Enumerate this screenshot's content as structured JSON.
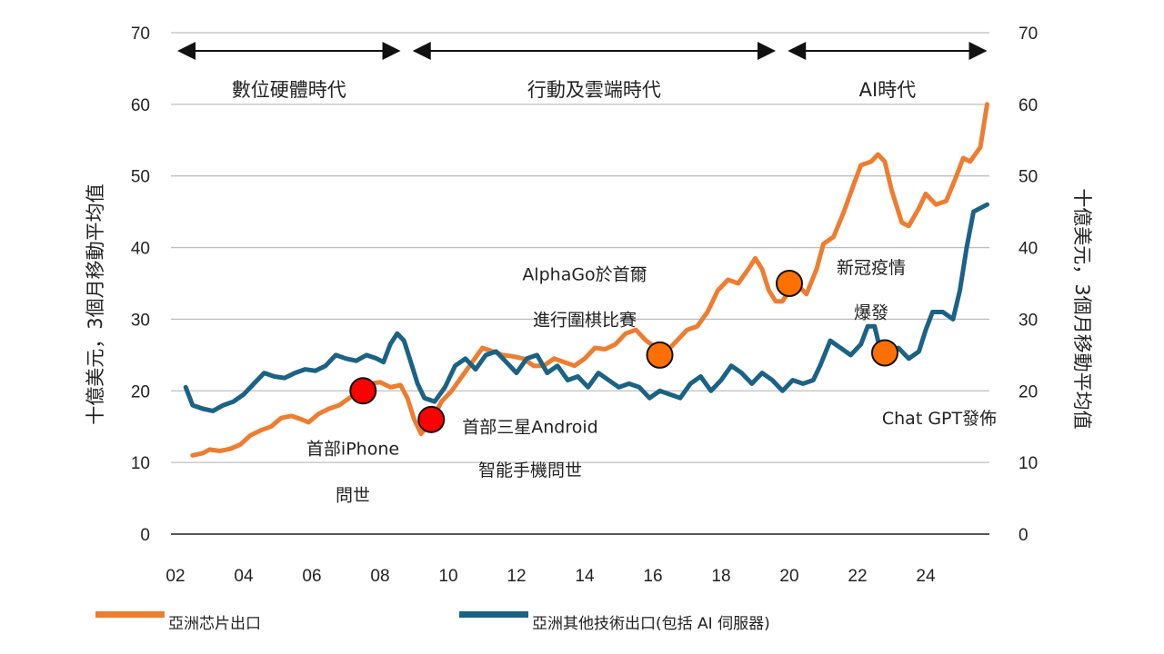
{
  "chart_data": {
    "type": "line",
    "title": "",
    "ylabel": "十億美元，3個月移動平均值",
    "ylabel_right": "十億美元，3個月移動平均值",
    "xlabel": "",
    "ylim": [
      0,
      70
    ],
    "yticks": [
      0,
      10,
      20,
      30,
      40,
      50,
      60,
      70
    ],
    "xticks": [
      "02",
      "04",
      "06",
      "08",
      "10",
      "12",
      "14",
      "16",
      "18",
      "20",
      "22",
      "24"
    ],
    "xlim": [
      2002,
      2026
    ],
    "grid": true,
    "legend_position": "bottom",
    "eras": [
      {
        "label": "數位硬體時代",
        "start": 2002,
        "end": 2008.6
      },
      {
        "label": "行動及雲端時代",
        "start": 2008.9,
        "end": 2019.6
      },
      {
        "label": "AI時代",
        "start": 2019.9,
        "end": 2025.8
      }
    ],
    "series": [
      {
        "name": "亞洲芯片出口",
        "color": "#ED7D31",
        "points": [
          [
            2002.5,
            11
          ],
          [
            2002.8,
            11.3
          ],
          [
            2003.0,
            11.8
          ],
          [
            2003.3,
            11.6
          ],
          [
            2003.6,
            11.9
          ],
          [
            2003.9,
            12.5
          ],
          [
            2004.2,
            13.8
          ],
          [
            2004.5,
            14.5
          ],
          [
            2004.8,
            15.0
          ],
          [
            2005.1,
            16.2
          ],
          [
            2005.4,
            16.5
          ],
          [
            2005.7,
            16.0
          ],
          [
            2005.9,
            15.6
          ],
          [
            2006.2,
            16.8
          ],
          [
            2006.5,
            17.5
          ],
          [
            2006.8,
            18.0
          ],
          [
            2007.1,
            19.0
          ],
          [
            2007.4,
            20.0
          ],
          [
            2007.7,
            21.0
          ],
          [
            2008.0,
            21.2
          ],
          [
            2008.3,
            20.5
          ],
          [
            2008.6,
            20.8
          ],
          [
            2008.8,
            19.0
          ],
          [
            2009.0,
            16.0
          ],
          [
            2009.2,
            14.0
          ],
          [
            2009.5,
            15.8
          ],
          [
            2009.8,
            18.5
          ],
          [
            2010.1,
            20.0
          ],
          [
            2010.4,
            22.0
          ],
          [
            2010.7,
            24.0
          ],
          [
            2011.0,
            26.0
          ],
          [
            2011.3,
            25.5
          ],
          [
            2011.6,
            25.0
          ],
          [
            2011.9,
            24.8
          ],
          [
            2012.2,
            24.5
          ],
          [
            2012.5,
            23.5
          ],
          [
            2012.8,
            23.5
          ],
          [
            2013.1,
            24.5
          ],
          [
            2013.4,
            24.0
          ],
          [
            2013.7,
            23.5
          ],
          [
            2014.0,
            24.5
          ],
          [
            2014.3,
            26.0
          ],
          [
            2014.6,
            25.8
          ],
          [
            2014.9,
            26.5
          ],
          [
            2015.2,
            28.0
          ],
          [
            2015.5,
            28.5
          ],
          [
            2015.8,
            27.0
          ],
          [
            2016.1,
            26.0
          ],
          [
            2016.4,
            25.5
          ],
          [
            2016.7,
            27.0
          ],
          [
            2017.0,
            28.5
          ],
          [
            2017.3,
            29.0
          ],
          [
            2017.6,
            31.0
          ],
          [
            2017.9,
            34.0
          ],
          [
            2018.2,
            35.5
          ],
          [
            2018.5,
            35.0
          ],
          [
            2018.8,
            37.0
          ],
          [
            2019.0,
            38.5
          ],
          [
            2019.2,
            37.0
          ],
          [
            2019.4,
            34.0
          ],
          [
            2019.6,
            32.5
          ],
          [
            2019.8,
            32.5
          ],
          [
            2020.0,
            34.0
          ],
          [
            2020.2,
            35.0
          ],
          [
            2020.5,
            33.5
          ],
          [
            2020.8,
            37.0
          ],
          [
            2021.0,
            40.5
          ],
          [
            2021.3,
            41.5
          ],
          [
            2021.6,
            45.0
          ],
          [
            2021.9,
            49.0
          ],
          [
            2022.1,
            51.5
          ],
          [
            2022.4,
            52.0
          ],
          [
            2022.6,
            53.0
          ],
          [
            2022.8,
            52.0
          ],
          [
            2023.0,
            48.0
          ],
          [
            2023.3,
            43.5
          ],
          [
            2023.5,
            43.0
          ],
          [
            2023.8,
            45.5
          ],
          [
            2024.0,
            47.5
          ],
          [
            2024.3,
            46.0
          ],
          [
            2024.6,
            46.5
          ],
          [
            2024.9,
            50.0
          ],
          [
            2025.1,
            52.5
          ],
          [
            2025.3,
            52.0
          ],
          [
            2025.6,
            54.0
          ],
          [
            2025.8,
            60.0
          ]
        ]
      },
      {
        "name": "亞洲其他技術出口(包括 AI 伺服器)",
        "color": "#1B6285",
        "points": [
          [
            2002.3,
            20.5
          ],
          [
            2002.5,
            18.0
          ],
          [
            2002.8,
            17.5
          ],
          [
            2003.1,
            17.2
          ],
          [
            2003.4,
            18.0
          ],
          [
            2003.7,
            18.5
          ],
          [
            2004.0,
            19.5
          ],
          [
            2004.3,
            21.0
          ],
          [
            2004.6,
            22.5
          ],
          [
            2004.9,
            22.0
          ],
          [
            2005.2,
            21.8
          ],
          [
            2005.5,
            22.5
          ],
          [
            2005.8,
            23.0
          ],
          [
            2006.1,
            22.8
          ],
          [
            2006.4,
            23.5
          ],
          [
            2006.7,
            25.0
          ],
          [
            2007.0,
            24.5
          ],
          [
            2007.3,
            24.2
          ],
          [
            2007.6,
            25.0
          ],
          [
            2007.9,
            24.5
          ],
          [
            2008.1,
            24.0
          ],
          [
            2008.3,
            26.5
          ],
          [
            2008.5,
            28.0
          ],
          [
            2008.7,
            27.0
          ],
          [
            2008.9,
            24.0
          ],
          [
            2009.1,
            21.0
          ],
          [
            2009.3,
            19.0
          ],
          [
            2009.6,
            18.5
          ],
          [
            2009.9,
            20.5
          ],
          [
            2010.2,
            23.5
          ],
          [
            2010.5,
            24.5
          ],
          [
            2010.8,
            23.0
          ],
          [
            2011.1,
            25.0
          ],
          [
            2011.4,
            25.5
          ],
          [
            2011.7,
            24.0
          ],
          [
            2012.0,
            22.5
          ],
          [
            2012.3,
            24.5
          ],
          [
            2012.6,
            25.0
          ],
          [
            2012.9,
            22.5
          ],
          [
            2013.2,
            23.5
          ],
          [
            2013.5,
            21.5
          ],
          [
            2013.8,
            22.0
          ],
          [
            2014.1,
            20.5
          ],
          [
            2014.4,
            22.5
          ],
          [
            2014.7,
            21.5
          ],
          [
            2015.0,
            20.5
          ],
          [
            2015.3,
            21.0
          ],
          [
            2015.6,
            20.5
          ],
          [
            2015.9,
            19.0
          ],
          [
            2016.2,
            20.0
          ],
          [
            2016.5,
            19.5
          ],
          [
            2016.8,
            19.0
          ],
          [
            2017.1,
            21.0
          ],
          [
            2017.4,
            22.0
          ],
          [
            2017.7,
            20.0
          ],
          [
            2018.0,
            21.5
          ],
          [
            2018.3,
            23.5
          ],
          [
            2018.6,
            22.5
          ],
          [
            2018.9,
            21.0
          ],
          [
            2019.2,
            22.5
          ],
          [
            2019.5,
            21.5
          ],
          [
            2019.8,
            20.0
          ],
          [
            2020.1,
            21.5
          ],
          [
            2020.4,
            21.0
          ],
          [
            2020.7,
            21.5
          ],
          [
            2020.9,
            23.5
          ],
          [
            2021.2,
            27.0
          ],
          [
            2021.5,
            26.0
          ],
          [
            2021.8,
            25.0
          ],
          [
            2022.1,
            26.5
          ],
          [
            2022.3,
            29.0
          ],
          [
            2022.5,
            29.0
          ],
          [
            2022.7,
            25.0
          ],
          [
            2022.9,
            25.5
          ],
          [
            2023.2,
            26.0
          ],
          [
            2023.5,
            24.5
          ],
          [
            2023.8,
            25.5
          ],
          [
            2024.0,
            28.5
          ],
          [
            2024.2,
            31.0
          ],
          [
            2024.5,
            31.0
          ],
          [
            2024.8,
            30.0
          ],
          [
            2025.0,
            34.0
          ],
          [
            2025.2,
            40.0
          ],
          [
            2025.4,
            45.0
          ],
          [
            2025.8,
            46.0
          ]
        ]
      }
    ],
    "annotations": [
      {
        "lines": [
          "首部iPhone",
          "問世"
        ],
        "marker": [
          2007.5,
          20.0
        ],
        "marker_color": "#FF0000",
        "text_x": 2007.2,
        "text_y": [
          12.0,
          5.5
        ]
      },
      {
        "lines": [
          "首部三星Android",
          "智能手機問世"
        ],
        "marker": [
          2009.5,
          16.0
        ],
        "marker_color": "#FF0000",
        "text_x": 2012.4,
        "text_y": [
          15.0,
          9.0
        ]
      },
      {
        "lines": [
          "AlphaGo於首爾",
          "進行圍棋比賽"
        ],
        "marker": [
          2016.2,
          25.0
        ],
        "marker_color": "#FF7000",
        "text_x": 2014.0,
        "text_y": [
          36.3,
          30.0
        ]
      },
      {
        "lines": [
          "新冠疫情",
          "爆發"
        ],
        "marker": [
          2020.0,
          35.0
        ],
        "marker_color": "#FF7000",
        "text_x": 2022.4,
        "text_y": [
          37.3,
          31.0
        ]
      },
      {
        "lines": [
          "Chat GPT發佈"
        ],
        "marker": [
          2022.8,
          25.3
        ],
        "marker_color": "#FF7000",
        "text_x": 2024.4,
        "text_y": [
          16.2
        ]
      }
    ]
  },
  "legend": {
    "items": [
      {
        "label": "亞洲芯片出口",
        "color": "#ED7D31"
      },
      {
        "label": "亞洲其他技術出口(包括 AI 伺服器)",
        "color": "#1B6285"
      }
    ]
  }
}
